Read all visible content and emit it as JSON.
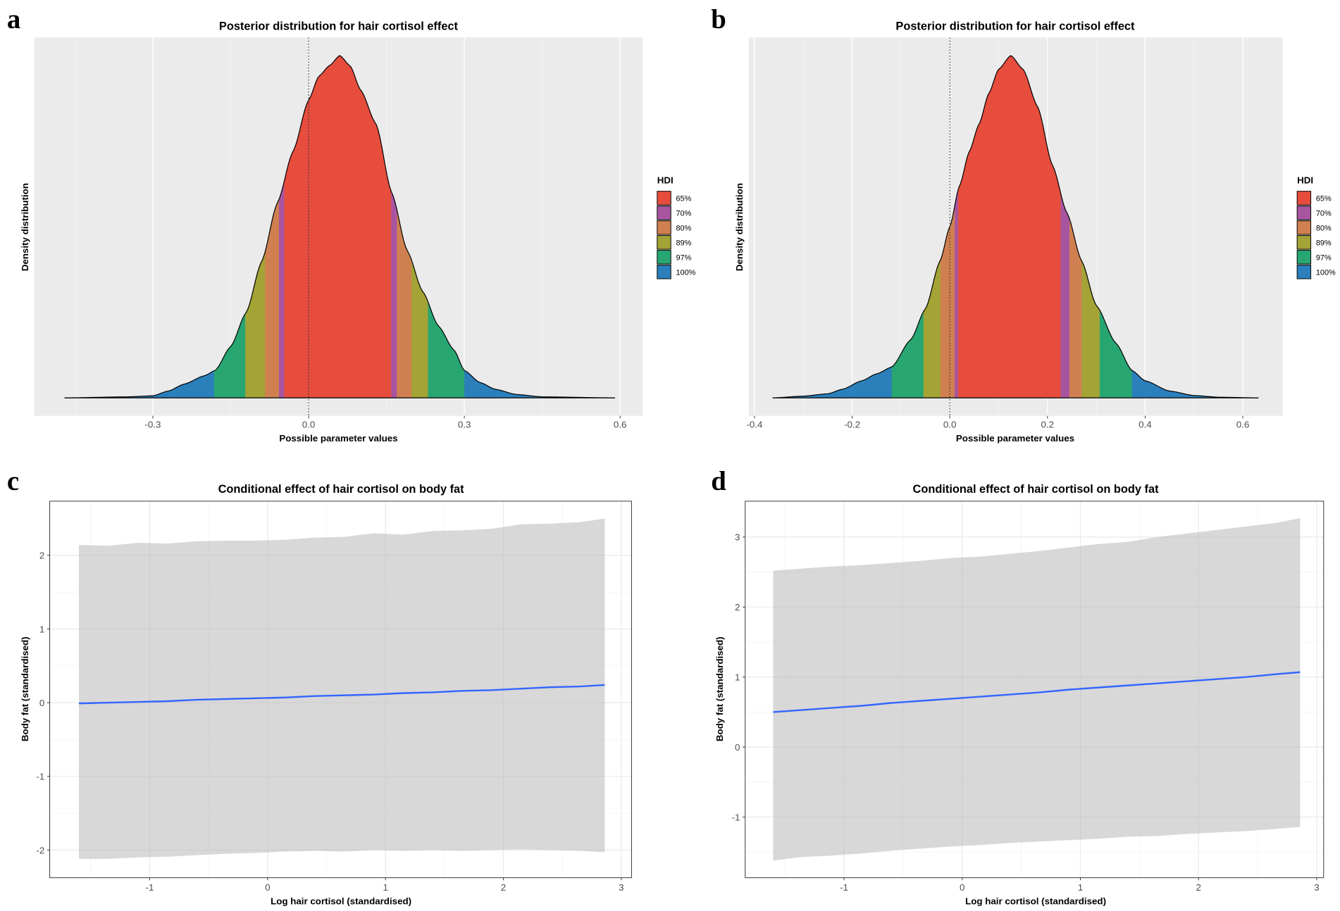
{
  "chart_data": [
    {
      "panel": "a",
      "type": "area",
      "title": "Posterior distribution for hair cortisol effect",
      "xlabel": "Possible parameter values",
      "ylabel": "Density distribution",
      "xticks": [
        -0.3,
        0.0,
        0.3,
        0.6
      ],
      "xtick_labels": [
        "-0.3",
        "0.0",
        "0.3",
        "0.6"
      ],
      "minor_xticks": [
        -0.45,
        -0.15,
        0.15,
        0.45
      ],
      "xlim": [
        -0.52,
        0.65
      ],
      "reference_line": 0.0,
      "density": {
        "x": [
          -0.47,
          -0.35,
          -0.3,
          -0.27,
          -0.24,
          -0.2,
          -0.18,
          -0.15,
          -0.12,
          -0.09,
          -0.06,
          -0.03,
          0.0,
          0.02,
          0.04,
          0.06,
          0.08,
          0.1,
          0.13,
          0.16,
          0.19,
          0.22,
          0.25,
          0.28,
          0.3,
          0.33,
          0.36,
          0.4,
          0.45,
          0.59
        ],
        "y": [
          0.0,
          0.003,
          0.006,
          0.02,
          0.04,
          0.065,
          0.08,
          0.15,
          0.25,
          0.4,
          0.57,
          0.72,
          0.87,
          0.94,
          0.97,
          1.0,
          0.97,
          0.9,
          0.8,
          0.6,
          0.43,
          0.31,
          0.21,
          0.14,
          0.08,
          0.045,
          0.025,
          0.01,
          0.003,
          0.0
        ]
      },
      "legend": {
        "title": "HDI",
        "placement": "right",
        "items": [
          {
            "label": "65%",
            "color": "#E64D3D",
            "interval": [
              -0.047,
              0.159
            ]
          },
          {
            "label": "70%",
            "color": "#A855A0",
            "interval": [
              -0.057,
              0.17
            ]
          },
          {
            "label": "80%",
            "color": "#D08050",
            "interval": [
              -0.084,
              0.198
            ]
          },
          {
            "label": "89%",
            "color": "#A3A336",
            "interval": [
              -0.122,
              0.23
            ]
          },
          {
            "label": "97%",
            "color": "#28A672",
            "interval": [
              -0.182,
              0.3
            ]
          },
          {
            "label": "100%",
            "color": "#2B7FBA",
            "interval": [
              -0.47,
              0.59
            ]
          }
        ]
      }
    },
    {
      "panel": "b",
      "type": "area",
      "title": "Posterior distribution for hair cortisol effect",
      "xlabel": "Possible parameter values",
      "ylabel": "Density distribution",
      "xticks": [
        -0.4,
        -0.2,
        0.0,
        0.2,
        0.4,
        0.6
      ],
      "xtick_labels": [
        "-0.4",
        "-0.2",
        "0.0",
        "0.2",
        "0.4",
        "0.6"
      ],
      "minor_xticks": [
        -0.3,
        -0.1,
        0.1,
        0.3,
        0.5
      ],
      "xlim": [
        -0.41,
        0.68
      ],
      "reference_line": 0.0,
      "density": {
        "x": [
          -0.363,
          -0.3,
          -0.25,
          -0.22,
          -0.18,
          -0.15,
          -0.119,
          -0.08,
          -0.05,
          -0.02,
          0.0,
          0.02,
          0.04,
          0.06,
          0.08,
          0.1,
          0.125,
          0.15,
          0.18,
          0.21,
          0.24,
          0.27,
          0.3,
          0.34,
          0.373,
          0.4,
          0.45,
          0.5,
          0.55,
          0.632
        ],
        "y": [
          0.0,
          0.005,
          0.012,
          0.025,
          0.05,
          0.07,
          0.09,
          0.17,
          0.26,
          0.4,
          0.5,
          0.62,
          0.72,
          0.8,
          0.89,
          0.96,
          1.0,
          0.96,
          0.85,
          0.68,
          0.54,
          0.4,
          0.27,
          0.16,
          0.08,
          0.05,
          0.02,
          0.007,
          0.002,
          0.0
        ]
      },
      "legend": {
        "title": "HDI",
        "placement": "right",
        "items": [
          {
            "label": "65%",
            "color": "#E64D3D",
            "interval": [
              0.017,
              0.227
            ]
          },
          {
            "label": "70%",
            "color": "#A855A0",
            "interval": [
              0.01,
              0.245
            ]
          },
          {
            "label": "80%",
            "color": "#D08050",
            "interval": [
              -0.019,
              0.27
            ]
          },
          {
            "label": "89%",
            "color": "#A3A336",
            "interval": [
              -0.054,
              0.307
            ]
          },
          {
            "label": "97%",
            "color": "#28A672",
            "interval": [
              -0.119,
              0.373
            ]
          },
          {
            "label": "100%",
            "color": "#2B7FBA",
            "interval": [
              -0.363,
              0.632
            ]
          }
        ]
      }
    },
    {
      "panel": "c",
      "type": "line",
      "title": "Conditional effect of hair cortisol on body fat",
      "xlabel": "Log hair cortisol (standardised)",
      "ylabel": "Body fat (standardised)",
      "xticks": [
        -1,
        0,
        1,
        2,
        3
      ],
      "xtick_labels": [
        "-1",
        "0",
        "1",
        "2",
        "3"
      ],
      "yticks": [
        -2,
        -1,
        0,
        1,
        2
      ],
      "ytick_labels": [
        "-2",
        "-1",
        "0",
        "1",
        "2"
      ],
      "minor_xticks": [
        -1.5,
        -0.5,
        0.5,
        1.5,
        2.5
      ],
      "minor_yticks": [
        -1.5,
        -0.5,
        0.5,
        1.5
      ],
      "xlim": [
        -1.85,
        3.09
      ],
      "ylim": [
        -2.38,
        2.73
      ],
      "line_color": "#3366FF",
      "ribbon_color": "#D9D9D9",
      "x": [
        -1.6,
        -1.35,
        -1.1,
        -0.85,
        -0.6,
        -0.35,
        -0.1,
        0.15,
        0.4,
        0.65,
        0.9,
        1.15,
        1.4,
        1.65,
        1.9,
        2.15,
        2.4,
        2.65,
        2.86
      ],
      "upper": [
        2.14,
        2.13,
        2.17,
        2.16,
        2.19,
        2.2,
        2.2,
        2.21,
        2.24,
        2.25,
        2.3,
        2.28,
        2.33,
        2.34,
        2.36,
        2.42,
        2.43,
        2.45,
        2.5
      ],
      "lower": [
        -2.12,
        -2.12,
        -2.1,
        -2.09,
        -2.07,
        -2.05,
        -2.04,
        -2.02,
        -2.01,
        -2.02,
        -2.0,
        -2.01,
        -2.0,
        -2.01,
        -2.0,
        -1.99,
        -2.0,
        -2.01,
        -2.03
      ],
      "estimate": [
        -0.01,
        0.0,
        0.01,
        0.02,
        0.04,
        0.05,
        0.06,
        0.07,
        0.09,
        0.1,
        0.11,
        0.13,
        0.14,
        0.16,
        0.17,
        0.19,
        0.21,
        0.22,
        0.24
      ]
    },
    {
      "panel": "d",
      "type": "line",
      "title": "Conditional effect of hair cortisol on body fat",
      "xlabel": "Log hair cortisol (standardised)",
      "ylabel": "Body fat (standardised)",
      "xticks": [
        -1,
        0,
        1,
        2,
        3
      ],
      "xtick_labels": [
        "-1",
        "0",
        "1",
        "2",
        "3"
      ],
      "yticks": [
        -1,
        0,
        1,
        2,
        3
      ],
      "ytick_labels": [
        "-1",
        "0",
        "1",
        "2",
        "3"
      ],
      "minor_xticks": [
        -1.5,
        -0.5,
        0.5,
        1.5,
        2.5
      ],
      "minor_yticks": [
        -1.5,
        -0.5,
        0.5,
        1.5,
        2.5
      ],
      "xlim": [
        -1.84,
        3.06
      ],
      "ylim": [
        -1.87,
        3.51
      ],
      "line_color": "#3366FF",
      "ribbon_color": "#D9D9D9",
      "x": [
        -1.6,
        -1.35,
        -1.1,
        -0.85,
        -0.6,
        -0.35,
        -0.1,
        0.15,
        0.4,
        0.65,
        0.9,
        1.15,
        1.4,
        1.65,
        1.9,
        2.15,
        2.4,
        2.65,
        2.86
      ],
      "upper": [
        2.52,
        2.55,
        2.58,
        2.6,
        2.63,
        2.66,
        2.7,
        2.72,
        2.76,
        2.8,
        2.85,
        2.9,
        2.93,
        3.0,
        3.05,
        3.1,
        3.15,
        3.2,
        3.27
      ],
      "lower": [
        -1.62,
        -1.57,
        -1.55,
        -1.52,
        -1.48,
        -1.45,
        -1.42,
        -1.4,
        -1.37,
        -1.35,
        -1.33,
        -1.31,
        -1.28,
        -1.27,
        -1.24,
        -1.22,
        -1.2,
        -1.17,
        -1.14
      ],
      "estimate": [
        0.5,
        0.53,
        0.56,
        0.59,
        0.63,
        0.66,
        0.69,
        0.72,
        0.75,
        0.78,
        0.82,
        0.85,
        0.88,
        0.91,
        0.94,
        0.97,
        1.0,
        1.04,
        1.07
      ]
    }
  ],
  "panel_letters": [
    "a",
    "b",
    "c",
    "d"
  ]
}
